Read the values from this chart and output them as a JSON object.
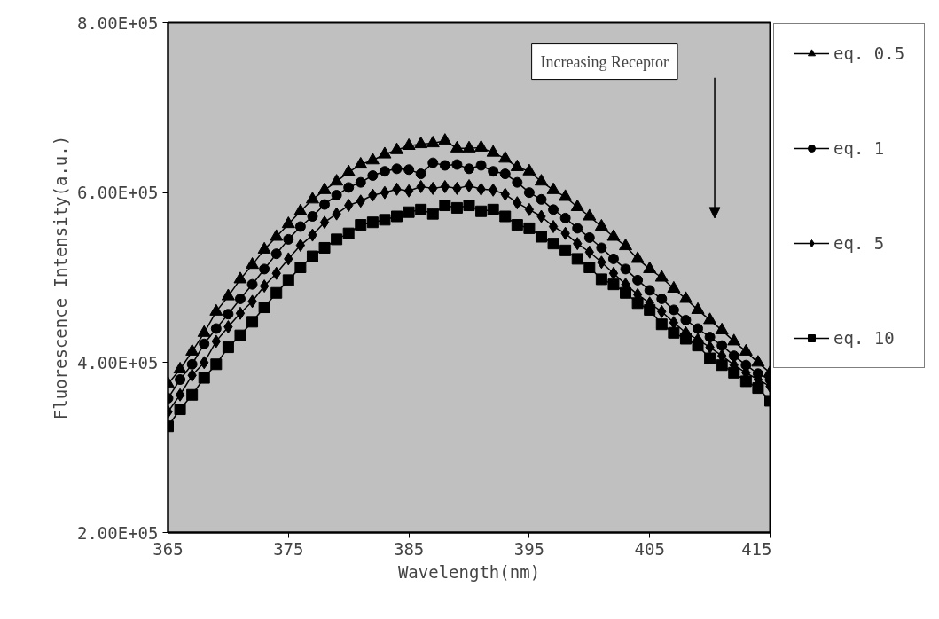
{
  "chart_data": {
    "type": "line",
    "xlabel": "Wavelength(nm)",
    "ylabel": "Fluorescence Intensity(a.u.)",
    "x": [
      365,
      366,
      367,
      368,
      369,
      370,
      371,
      372,
      373,
      374,
      375,
      376,
      377,
      378,
      379,
      380,
      381,
      382,
      383,
      384,
      385,
      386,
      387,
      388,
      389,
      390,
      391,
      392,
      393,
      394,
      395,
      396,
      397,
      398,
      399,
      400,
      401,
      402,
      403,
      404,
      405,
      406,
      407,
      408,
      409,
      410,
      411,
      412,
      413,
      414,
      415
    ],
    "series": [
      {
        "name": "eq. 0.5",
        "color": "#000000",
        "marker": "triangle",
        "values": [
          375000,
          392000,
          413000,
          435000,
          460000,
          478000,
          498000,
          515000,
          533000,
          548000,
          563000,
          578000,
          592000,
          603000,
          613000,
          624000,
          633000,
          638000,
          645000,
          650000,
          655000,
          657000,
          658000,
          661000,
          652000,
          652000,
          653000,
          647000,
          640000,
          630000,
          625000,
          613000,
          603000,
          595000,
          583000,
          572000,
          560000,
          548000,
          537000,
          522000,
          510000,
          500000,
          487000,
          475000,
          462000,
          450000,
          438000,
          425000,
          413000,
          400000,
          388000
        ]
      },
      {
        "name": "eq. 1",
        "color": "#000000",
        "marker": "circle",
        "values": [
          358000,
          380000,
          398000,
          422000,
          440000,
          457000,
          475000,
          492000,
          510000,
          528000,
          545000,
          560000,
          572000,
          586000,
          597000,
          606000,
          612000,
          620000,
          625000,
          628000,
          627000,
          622000,
          635000,
          632000,
          633000,
          628000,
          632000,
          625000,
          622000,
          612000,
          600000,
          592000,
          580000,
          570000,
          558000,
          547000,
          535000,
          522000,
          510000,
          497000,
          485000,
          475000,
          462000,
          450000,
          440000,
          430000,
          420000,
          408000,
          397000,
          387000,
          380000
        ]
      },
      {
        "name": "eq. 5",
        "color": "#000000",
        "marker": "diamond",
        "values": [
          342000,
          362000,
          385000,
          400000,
          425000,
          442000,
          458000,
          472000,
          490000,
          505000,
          522000,
          538000,
          550000,
          565000,
          575000,
          585000,
          590000,
          597000,
          600000,
          604000,
          602000,
          607000,
          605000,
          607000,
          605000,
          608000,
          604000,
          603000,
          598000,
          588000,
          580000,
          572000,
          560000,
          552000,
          540000,
          530000,
          518000,
          505000,
          492000,
          480000,
          470000,
          460000,
          447000,
          435000,
          427000,
          418000,
          408000,
          397000,
          388000,
          380000,
          372000
        ]
      },
      {
        "name": "eq. 10",
        "color": "#000000",
        "marker": "square",
        "values": [
          325000,
          345000,
          362000,
          382000,
          398000,
          418000,
          432000,
          448000,
          465000,
          482000,
          497000,
          512000,
          525000,
          535000,
          545000,
          552000,
          562000,
          565000,
          568000,
          572000,
          577000,
          580000,
          575000,
          585000,
          582000,
          585000,
          578000,
          580000,
          572000,
          562000,
          558000,
          548000,
          540000,
          532000,
          522000,
          512000,
          498000,
          492000,
          482000,
          470000,
          462000,
          445000,
          435000,
          428000,
          420000,
          405000,
          397000,
          388000,
          378000,
          370000,
          355000
        ]
      }
    ],
    "xlim": [
      365,
      415
    ],
    "xticks": [
      365,
      375,
      385,
      395,
      405,
      415
    ],
    "ylim": [
      200000,
      800000
    ],
    "yticks": [
      {
        "value": 200000,
        "label": "2.00E+05"
      },
      {
        "value": 400000,
        "label": "4.00E+05"
      },
      {
        "value": 600000,
        "label": "6.00E+05"
      },
      {
        "value": 800000,
        "label": "8.00E+05"
      }
    ],
    "annotations": [
      "Increasing Receptor"
    ],
    "legend": "right",
    "grid": false,
    "line_style": "solid"
  }
}
